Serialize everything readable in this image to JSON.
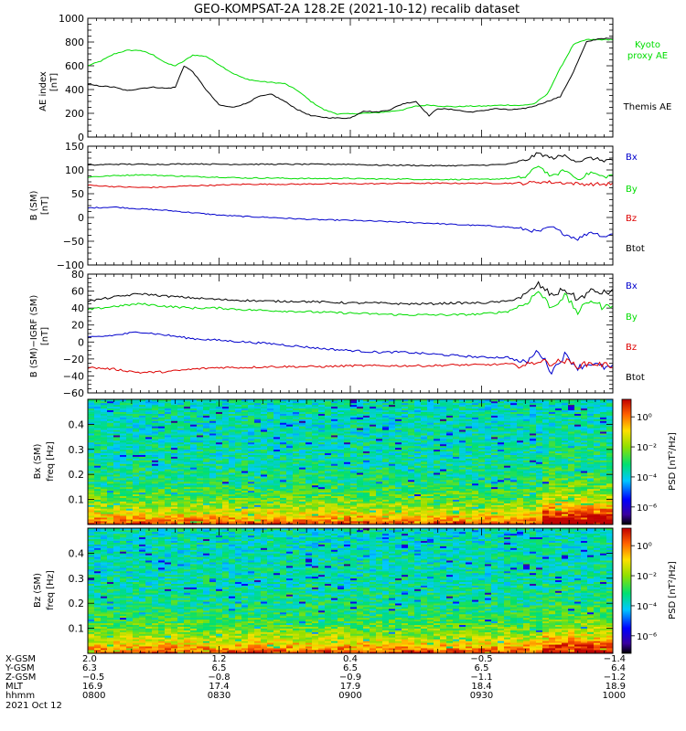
{
  "title": "GEO-KOMPSAT-2A 128.2E (2021-10-12) recalib dataset",
  "colors": {
    "black": "#000000",
    "green": "#00dd00",
    "red": "#dd0000",
    "blue": "#0000cc"
  },
  "chart_data": [
    {
      "id": "ae",
      "type": "line",
      "ylabel": "AE index",
      "unit": "[nT]",
      "ylim": [
        0,
        1000
      ],
      "yticks": [
        "0",
        "200",
        "400",
        "600",
        "800",
        "1000"
      ],
      "x": [
        "0800",
        "0830",
        "0900",
        "0930",
        "1000"
      ],
      "series": [
        {
          "name": "Kyoto proxy AE",
          "label_lines": [
            "Kyoto",
            "proxy AE"
          ],
          "color": "green",
          "t": [
            0,
            3,
            6,
            9,
            12,
            15,
            18,
            20,
            22,
            24,
            27,
            30,
            33,
            36,
            39,
            42,
            45,
            48,
            51,
            54,
            57,
            60,
            63,
            66,
            69,
            72,
            75,
            78,
            81,
            84,
            87,
            90,
            93,
            96,
            99,
            102,
            105,
            108,
            111,
            114,
            117,
            120
          ],
          "v": [
            600,
            640,
            700,
            730,
            730,
            690,
            620,
            600,
            640,
            690,
            680,
            610,
            540,
            490,
            470,
            460,
            450,
            390,
            300,
            230,
            195,
            195,
            200,
            205,
            215,
            230,
            260,
            270,
            260,
            255,
            260,
            260,
            265,
            270,
            265,
            280,
            360,
            580,
            780,
            820,
            820,
            820
          ]
        },
        {
          "name": "Themis AE",
          "label_lines": [
            "Themis AE"
          ],
          "color": "black",
          "t": [
            0,
            3,
            6,
            9,
            12,
            15,
            18,
            20,
            22,
            24,
            27,
            30,
            33,
            36,
            39,
            42,
            45,
            48,
            51,
            54,
            57,
            60,
            63,
            66,
            69,
            72,
            75,
            78,
            80,
            84,
            87,
            90,
            93,
            96,
            99,
            102,
            105,
            108,
            111,
            114,
            117,
            120
          ],
          "v": [
            440,
            430,
            420,
            390,
            410,
            420,
            410,
            420,
            600,
            550,
            400,
            270,
            250,
            280,
            340,
            360,
            300,
            230,
            180,
            165,
            160,
            160,
            220,
            210,
            230,
            280,
            300,
            180,
            240,
            230,
            210,
            220,
            240,
            230,
            235,
            260,
            300,
            340,
            550,
            800,
            830,
            830
          ]
        }
      ]
    },
    {
      "id": "b",
      "type": "line",
      "ylabel": "B (SM)",
      "unit": "[nT]",
      "ylim": [
        -100,
        150
      ],
      "yticks": [
        "−100",
        "−50",
        "0",
        "50",
        "100",
        "150"
      ],
      "x": [
        "0800",
        "0830",
        "0900",
        "0930",
        "1000"
      ],
      "series": [
        {
          "name": "Bx",
          "color": "blue",
          "t": [
            0,
            6,
            12,
            18,
            24,
            30,
            36,
            42,
            48,
            54,
            60,
            66,
            72,
            78,
            84,
            90,
            96,
            100,
            103,
            106,
            109,
            112,
            115,
            118,
            120
          ],
          "v": [
            20,
            22,
            18,
            15,
            10,
            5,
            2,
            0,
            -3,
            -5,
            -6,
            -8,
            -10,
            -12,
            -15,
            -17,
            -20,
            -25,
            -30,
            -20,
            -35,
            -45,
            -30,
            -40,
            -35
          ]
        },
        {
          "name": "By",
          "color": "green",
          "t": [
            0,
            6,
            12,
            18,
            24,
            30,
            36,
            42,
            48,
            54,
            60,
            66,
            72,
            78,
            84,
            90,
            96,
            100,
            103,
            106,
            109,
            112,
            115,
            118,
            120
          ],
          "v": [
            85,
            88,
            90,
            88,
            86,
            85,
            83,
            83,
            82,
            82,
            82,
            81,
            81,
            80,
            80,
            80,
            82,
            85,
            110,
            85,
            100,
            80,
            95,
            85,
            90
          ]
        },
        {
          "name": "Bz",
          "color": "red",
          "t": [
            0,
            6,
            12,
            18,
            24,
            30,
            36,
            42,
            48,
            54,
            60,
            66,
            72,
            78,
            84,
            90,
            96,
            100,
            103,
            106,
            109,
            112,
            115,
            118,
            120
          ],
          "v": [
            68,
            65,
            63,
            64,
            67,
            68,
            70,
            70,
            70,
            71,
            71,
            71,
            72,
            72,
            72,
            72,
            72,
            72,
            75,
            74,
            73,
            71,
            70,
            70,
            71
          ]
        },
        {
          "name": "Btot",
          "color": "black",
          "t": [
            0,
            6,
            12,
            18,
            24,
            30,
            36,
            42,
            48,
            54,
            60,
            66,
            72,
            78,
            84,
            90,
            96,
            100,
            103,
            106,
            109,
            112,
            115,
            118,
            120
          ],
          "v": [
            110,
            112,
            112,
            112,
            113,
            112,
            112,
            112,
            112,
            112,
            112,
            110,
            110,
            109,
            109,
            110,
            112,
            120,
            135,
            125,
            130,
            118,
            125,
            120,
            122
          ]
        }
      ]
    },
    {
      "id": "db",
      "type": "line",
      "ylabel": "B (SM)−IGRF (SM)",
      "unit": "[nT]",
      "ylim": [
        -60,
        80
      ],
      "yticks": [
        "−60",
        "−40",
        "−20",
        "0",
        "20",
        "40",
        "60",
        "80"
      ],
      "x": [
        "0800",
        "0830",
        "0900",
        "0930",
        "1000"
      ],
      "series": [
        {
          "name": "Bx",
          "color": "blue",
          "t": [
            0,
            6,
            12,
            18,
            24,
            30,
            36,
            42,
            48,
            54,
            60,
            66,
            72,
            78,
            84,
            90,
            96,
            100,
            103,
            106,
            109,
            112,
            115,
            118,
            120
          ],
          "v": [
            5,
            8,
            12,
            8,
            4,
            2,
            0,
            -2,
            -5,
            -8,
            -10,
            -12,
            -12,
            -14,
            -16,
            -18,
            -18,
            -25,
            -10,
            -35,
            -15,
            -30,
            -25,
            -30,
            -30
          ]
        },
        {
          "name": "By",
          "color": "green",
          "t": [
            0,
            6,
            12,
            18,
            24,
            30,
            36,
            42,
            48,
            54,
            60,
            66,
            72,
            78,
            84,
            90,
            96,
            100,
            103,
            106,
            109,
            112,
            115,
            118,
            120
          ],
          "v": [
            38,
            42,
            45,
            42,
            40,
            40,
            38,
            37,
            36,
            35,
            34,
            33,
            32,
            32,
            32,
            33,
            36,
            45,
            60,
            40,
            55,
            35,
            50,
            40,
            45
          ]
        },
        {
          "name": "Bz",
          "color": "red",
          "t": [
            0,
            6,
            12,
            18,
            24,
            30,
            36,
            42,
            48,
            54,
            60,
            66,
            72,
            78,
            84,
            90,
            96,
            100,
            103,
            106,
            109,
            112,
            115,
            118,
            120
          ],
          "v": [
            -30,
            -32,
            -36,
            -35,
            -32,
            -30,
            -30,
            -29,
            -29,
            -29,
            -28,
            -28,
            -28,
            -28,
            -27,
            -27,
            -26,
            -28,
            -22,
            -25,
            -22,
            -28,
            -25,
            -27,
            -28
          ]
        },
        {
          "name": "Btot",
          "color": "black",
          "t": [
            0,
            6,
            12,
            18,
            24,
            30,
            36,
            42,
            48,
            54,
            60,
            66,
            72,
            78,
            84,
            90,
            96,
            100,
            103,
            106,
            109,
            112,
            115,
            118,
            120
          ],
          "v": [
            48,
            53,
            57,
            54,
            52,
            50,
            49,
            48,
            48,
            47,
            46,
            46,
            45,
            45,
            46,
            46,
            48,
            55,
            68,
            55,
            62,
            50,
            60,
            58,
            60
          ]
        }
      ]
    },
    {
      "id": "bx_spec",
      "type": "heatmap",
      "ylabel": "Bx (SM)",
      "sub_ylabel": "freq [Hz]",
      "yticks": [
        "0.1",
        "0.2",
        "0.3",
        "0.4"
      ],
      "colorbar_label": "PSD [nT²/Hz]",
      "colorbar_ticks": [
        "10⁰",
        "10⁻²",
        "10⁻⁴",
        "10⁻⁶"
      ]
    },
    {
      "id": "bz_spec",
      "type": "heatmap",
      "ylabel": "Bz (SM)",
      "sub_ylabel": "freq [Hz]",
      "yticks": [
        "0.1",
        "0.2",
        "0.3",
        "0.4"
      ],
      "colorbar_label": "PSD [nT²/Hz]",
      "colorbar_ticks": [
        "10⁰",
        "10⁻²",
        "10⁻⁴",
        "10⁻⁶"
      ]
    }
  ],
  "orbit_table": {
    "labels": [
      "X-GSM",
      "Y-GSM",
      "Z-GSM",
      "MLT",
      "hhmm"
    ],
    "date": "2021 Oct 12",
    "columns": [
      [
        "2.0",
        "6.3",
        "−0.5",
        "16.9",
        "0800"
      ],
      [
        "1.2",
        "6.5",
        "−0.8",
        "17.4",
        "0830"
      ],
      [
        "0.4",
        "6.5",
        "−0.9",
        "17.9",
        "0900"
      ],
      [
        "−0.5",
        "6.5",
        "−1.1",
        "18.4",
        "0930"
      ],
      [
        "−1.4",
        "6.4",
        "−1.2",
        "18.9",
        "1000"
      ]
    ]
  }
}
